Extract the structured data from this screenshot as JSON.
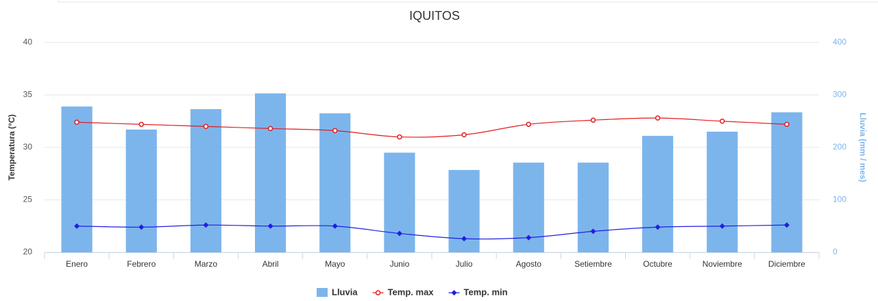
{
  "chart_data": {
    "type": "combo",
    "title": "IQUITOS",
    "categories": [
      "Enero",
      "Febrero",
      "Marzo",
      "Abril",
      "Mayo",
      "Junio",
      "Julio",
      "Agosto",
      "Setiembre",
      "Octubre",
      "Noviembre",
      "Diciembre"
    ],
    "ylabel": "Temperatura (°C)",
    "y2label": "Lluvia (mm / mes)",
    "ylim": [
      20,
      40
    ],
    "yticks": [
      20,
      25,
      30,
      35,
      40
    ],
    "y2lim": [
      0,
      400
    ],
    "y2ticks": [
      0,
      100,
      200,
      300,
      400
    ],
    "grid": true,
    "legend": "bottom",
    "series": [
      {
        "name": "Lluvia",
        "type": "bar",
        "axis": "y2",
        "color": "#7cb5ec",
        "values": [
          278,
          234,
          273,
          303,
          265,
          190,
          157,
          171,
          171,
          222,
          230,
          267
        ]
      },
      {
        "name": "Temp. max",
        "type": "line",
        "marker": "circle",
        "color": "#e41a1c",
        "values": [
          32.4,
          32.2,
          32.0,
          31.8,
          31.6,
          31.0,
          31.2,
          32.2,
          32.6,
          32.8,
          32.5,
          32.2
        ]
      },
      {
        "name": "Temp. min",
        "type": "line",
        "marker": "diamond",
        "color": "#1f1fe0",
        "values": [
          22.5,
          22.4,
          22.6,
          22.5,
          22.5,
          21.8,
          21.3,
          21.4,
          22.0,
          22.4,
          22.5,
          22.6
        ]
      }
    ]
  }
}
